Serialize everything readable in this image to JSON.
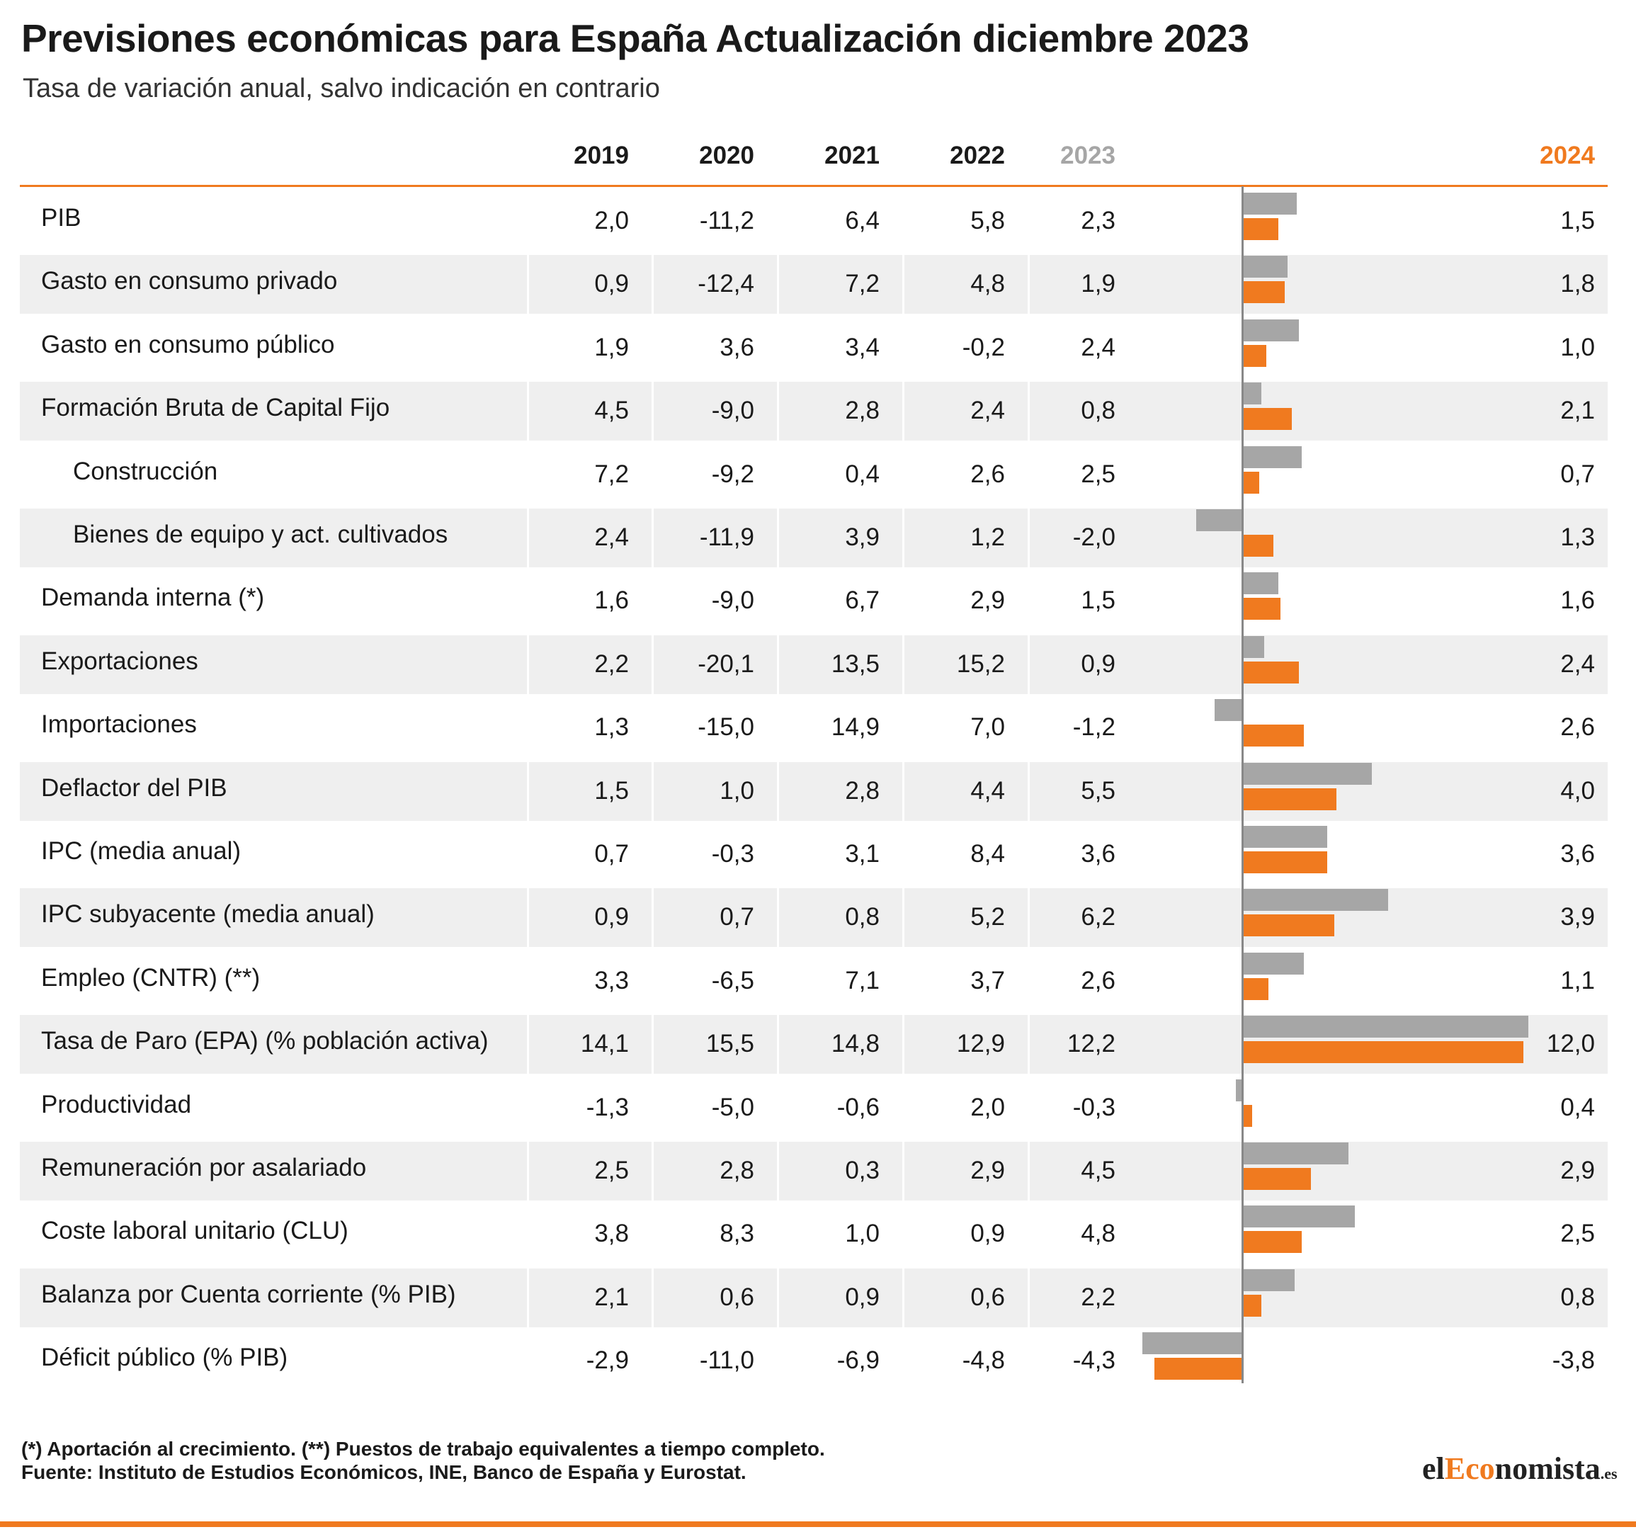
{
  "title": "Previsiones económicas para España Actualización diciembre 2023",
  "subtitle": "Tasa de variación anual, salvo indicación en contrario",
  "colors": {
    "accent": "#f07a1f",
    "forecast_2023": "#a6a6a6",
    "forecast_2024": "#f07a1f",
    "row_shade": "#efefef"
  },
  "footnote": "(*) Aportación al crecimiento. (**) Puestos de trabajo equivalentes a tiempo completo.",
  "source": "Fuente: Instituto de Estudios Económicos, INE, Banco de España y Eurostat.",
  "logo": {
    "el": "el",
    "eco": "Eco",
    "nomista": "nomista",
    "es": ".es"
  },
  "chart_data": {
    "type": "table",
    "columns": [
      "2019",
      "2020",
      "2021",
      "2022",
      "2023",
      "2024"
    ],
    "bar_series": [
      "2023",
      "2024"
    ],
    "rows": [
      {
        "label": "PIB",
        "values": [
          "2,0",
          "-11,2",
          "6,4",
          "5,8",
          "2,3",
          "1,5"
        ],
        "bars": [
          2.3,
          1.5
        ]
      },
      {
        "label": "Gasto en consumo privado",
        "values": [
          "0,9",
          "-12,4",
          "7,2",
          "4,8",
          "1,9",
          "1,8"
        ],
        "bars": [
          1.9,
          1.8
        ]
      },
      {
        "label": "Gasto en consumo público",
        "values": [
          "1,9",
          "3,6",
          "3,4",
          "-0,2",
          "2,4",
          "1,0"
        ],
        "bars": [
          2.4,
          1.0
        ]
      },
      {
        "label": "Formación Bruta de Capital Fijo",
        "values": [
          "4,5",
          "-9,0",
          "2,8",
          "2,4",
          "0,8",
          "2,1"
        ],
        "bars": [
          0.8,
          2.1
        ]
      },
      {
        "label": "Construcción",
        "indent": true,
        "values": [
          "7,2",
          "-9,2",
          "0,4",
          "2,6",
          "2,5",
          "0,7"
        ],
        "bars": [
          2.5,
          0.7
        ]
      },
      {
        "label": "Bienes de equipo y act. cultivados",
        "indent": true,
        "values": [
          "2,4",
          "-11,9",
          "3,9",
          "1,2",
          "-2,0",
          "1,3"
        ],
        "bars": [
          -2.0,
          1.3
        ]
      },
      {
        "label": "Demanda interna (*)",
        "values": [
          "1,6",
          "-9,0",
          "6,7",
          "2,9",
          "1,5",
          "1,6"
        ],
        "bars": [
          1.5,
          1.6
        ]
      },
      {
        "label": "Exportaciones",
        "values": [
          "2,2",
          "-20,1",
          "13,5",
          "15,2",
          "0,9",
          "2,4"
        ],
        "bars": [
          0.9,
          2.4
        ]
      },
      {
        "label": "Importaciones",
        "values": [
          "1,3",
          "-15,0",
          "14,9",
          "7,0",
          "-1,2",
          "2,6"
        ],
        "bars": [
          -1.2,
          2.6
        ]
      },
      {
        "label": "Deflactor del PIB",
        "values": [
          "1,5",
          "1,0",
          "2,8",
          "4,4",
          "5,5",
          "4,0"
        ],
        "bars": [
          5.5,
          4.0
        ]
      },
      {
        "label": "IPC (media anual)",
        "values": [
          "0,7",
          "-0,3",
          "3,1",
          "8,4",
          "3,6",
          "3,6"
        ],
        "bars": [
          3.6,
          3.6
        ]
      },
      {
        "label": "IPC subyacente (media anual)",
        "values": [
          "0,9",
          "0,7",
          "0,8",
          "5,2",
          "6,2",
          "3,9"
        ],
        "bars": [
          6.2,
          3.9
        ]
      },
      {
        "label": "Empleo (CNTR) (**)",
        "values": [
          "3,3",
          "-6,5",
          "7,1",
          "3,7",
          "2,6",
          "1,1"
        ],
        "bars": [
          2.6,
          1.1
        ]
      },
      {
        "label": "Tasa de Paro (EPA) (% población activa)",
        "values": [
          "14,1",
          "15,5",
          "14,8",
          "12,9",
          "12,2",
          "12,0"
        ],
        "bars": [
          12.2,
          12.0
        ]
      },
      {
        "label": "Productividad",
        "values": [
          "-1,3",
          "-5,0",
          "-0,6",
          "2,0",
          "-0,3",
          "0,4"
        ],
        "bars": [
          -0.3,
          0.4
        ]
      },
      {
        "label": "Remuneración por asalariado",
        "values": [
          "2,5",
          "2,8",
          "0,3",
          "2,9",
          "4,5",
          "2,9"
        ],
        "bars": [
          4.5,
          2.9
        ]
      },
      {
        "label": "Coste laboral unitario (CLU)",
        "values": [
          "3,8",
          "8,3",
          "1,0",
          "0,9",
          "4,8",
          "2,5"
        ],
        "bars": [
          4.8,
          2.5
        ]
      },
      {
        "label": "Balanza por Cuenta corriente (% PIB)",
        "values": [
          "2,1",
          "0,6",
          "0,9",
          "0,6",
          "2,2",
          "0,8"
        ],
        "bars": [
          2.2,
          0.8
        ]
      },
      {
        "label": "Déficit público (% PIB)",
        "values": [
          "-2,9",
          "-11,0",
          "-6,9",
          "-4,8",
          "-4,3",
          "-3,8"
        ],
        "bars": [
          -4.3,
          -3.8
        ]
      }
    ]
  }
}
